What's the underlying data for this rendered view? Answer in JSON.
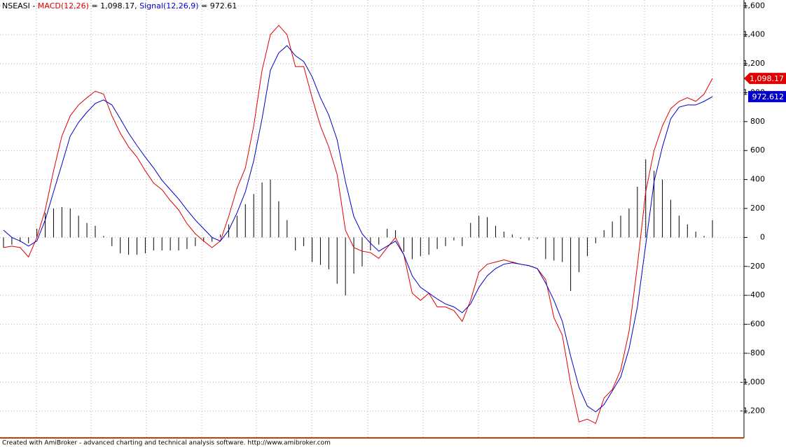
{
  "chart_data": {
    "type": "line",
    "title": "NSEASI -",
    "footer": "Created with AmiBroker - advanced charting and technical analysis software. http://www.amibroker.com",
    "categories": [
      null,
      null,
      null,
      null,
      null,
      null,
      null,
      null,
      null,
      null,
      null,
      null,
      null,
      null,
      null,
      null,
      null,
      null,
      null,
      null,
      null,
      null,
      null,
      null,
      null,
      null,
      null,
      null,
      null,
      null,
      null,
      null,
      null,
      null,
      null,
      null,
      null,
      null,
      null,
      null,
      null,
      null,
      null,
      null,
      null,
      null,
      null,
      null,
      null,
      null,
      null,
      null,
      null,
      null,
      null,
      null,
      null,
      null,
      null,
      null,
      null,
      null,
      null,
      null,
      null,
      null,
      null,
      null,
      null,
      null,
      null,
      null,
      null,
      null,
      null,
      null,
      null,
      null,
      null,
      null,
      null,
      null,
      null,
      null,
      null,
      null
    ],
    "series": [
      {
        "name": "MACD(12,26)",
        "color": "#e00000",
        "legend_value": "= 1,098.17,",
        "tag_label": "1,098.17",
        "values": [
          -70,
          -60,
          -70,
          -135,
          0,
          190,
          460,
          700,
          840,
          915,
          965,
          1010,
          990,
          840,
          720,
          625,
          555,
          460,
          375,
          330,
          255,
          190,
          95,
          25,
          -25,
          -70,
          -25,
          145,
          340,
          480,
          770,
          1155,
          1400,
          1465,
          1400,
          1180,
          1180,
          965,
          770,
          625,
          435,
          50,
          -70,
          -95,
          -105,
          -145,
          -70,
          0,
          -120,
          -385,
          -435,
          -385,
          -480,
          -480,
          -505,
          -580,
          -435,
          -240,
          -185,
          -170,
          -155,
          -170,
          -185,
          -195,
          -215,
          -290,
          -555,
          -675,
          -1010,
          -1275,
          -1255,
          -1285,
          -1110,
          -1050,
          -915,
          -650,
          -195,
          315,
          600,
          770,
          890,
          940,
          965,
          940,
          990,
          1098.17
        ]
      },
      {
        "name": "Signal(12,26,9)",
        "color": "#0000c8",
        "legend_value": "= 972.61",
        "tag_label": "972.612",
        "values": [
          50,
          0,
          -25,
          -60,
          -25,
          120,
          315,
          505,
          700,
          795,
          865,
          925,
          950,
          915,
          820,
          720,
          635,
          555,
          480,
          395,
          330,
          265,
          190,
          120,
          60,
          0,
          -25,
          50,
          170,
          315,
          530,
          820,
          1155,
          1275,
          1325,
          1255,
          1215,
          1110,
          965,
          845,
          675,
          385,
          145,
          25,
          -40,
          -95,
          -60,
          -25,
          -120,
          -265,
          -345,
          -385,
          -425,
          -460,
          -480,
          -520,
          -460,
          -345,
          -265,
          -215,
          -185,
          -175,
          -185,
          -195,
          -215,
          -315,
          -435,
          -580,
          -820,
          -1035,
          -1165,
          -1205,
          -1155,
          -1060,
          -965,
          -770,
          -480,
          -50,
          385,
          625,
          820,
          900,
          915,
          915,
          940,
          972.612
        ]
      }
    ],
    "histogram": {
      "color": "#000000",
      "values": [
        -70,
        -50,
        -30,
        -40,
        60,
        170,
        200,
        210,
        200,
        150,
        100,
        80,
        10,
        -60,
        -110,
        -120,
        -120,
        -110,
        -90,
        -90,
        -90,
        -90,
        -80,
        -60,
        -30,
        -30,
        20,
        90,
        150,
        230,
        300,
        380,
        400,
        250,
        120,
        -90,
        -60,
        -170,
        -190,
        -220,
        -320,
        -400,
        -250,
        -200,
        -90,
        -50,
        60,
        50,
        -100,
        -150,
        -130,
        -120,
        -80,
        -60,
        -20,
        -60,
        100,
        150,
        140,
        80,
        40,
        20,
        -10,
        -20,
        -10,
        -150,
        -160,
        -170,
        -370,
        -240,
        -130,
        -40,
        50,
        110,
        150,
        200,
        350,
        540,
        460,
        400,
        260,
        150,
        90,
        40,
        10,
        120
      ]
    },
    "ylim": [
      -1380,
      1640
    ],
    "yticks": [
      {
        "value": -1200,
        "label": "-1,200"
      },
      {
        "value": -1000,
        "label": "-1,000"
      },
      -800,
      -600,
      -400,
      -200,
      0,
      200,
      400,
      600,
      800,
      {
        "value": 1000,
        "label": "1,000"
      },
      {
        "value": 1200,
        "label": "1,200"
      },
      {
        "value": 1400,
        "label": "1,400"
      },
      {
        "value": 1600,
        "label": "1,600"
      }
    ],
    "grid": true
  }
}
